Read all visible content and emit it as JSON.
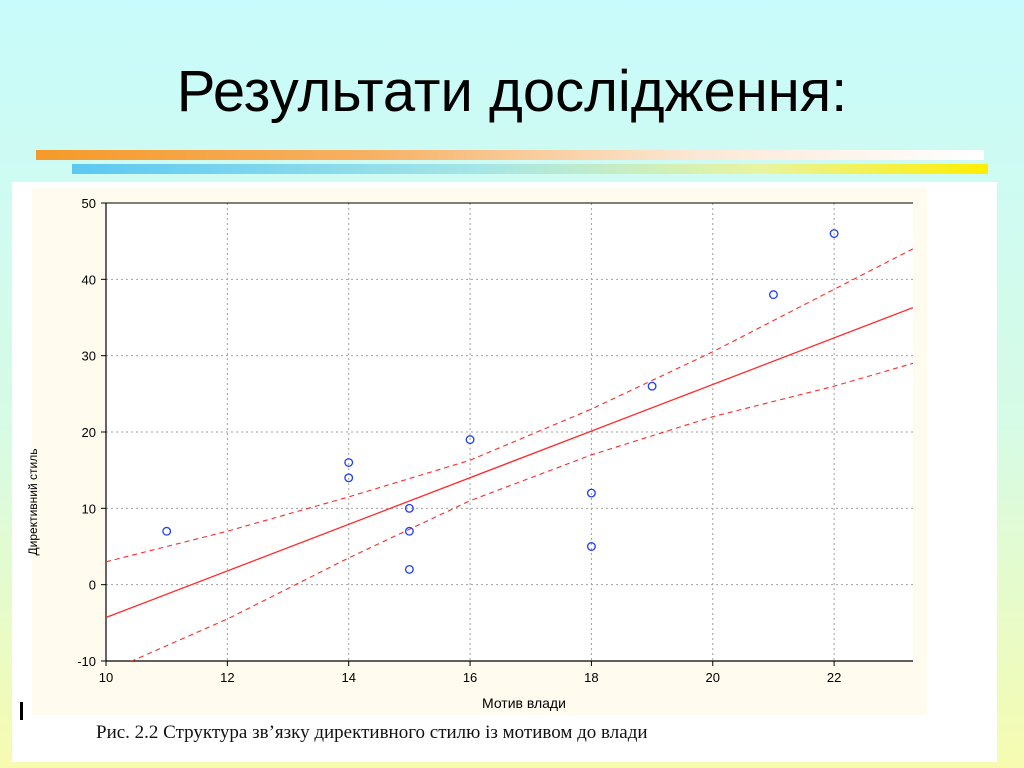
{
  "slide": {
    "title": "Результати дослідження:",
    "caption": "Рис. 2.2 Структура зв’язку директивного стилю із мотивом до влади"
  },
  "colors": {
    "points": "#1a3cff",
    "fit_line": "#ff2a2a",
    "confidence_band": "#ff2a2a",
    "grid": "#a0a0a0"
  },
  "chart_data": {
    "type": "scatter",
    "title": "",
    "xlabel": "Мотив влади",
    "ylabel": "Директивний стиль",
    "xlim": [
      10,
      23.3
    ],
    "ylim": [
      -10,
      50
    ],
    "x_ticks": [
      10,
      12,
      14,
      16,
      18,
      20,
      22
    ],
    "y_ticks": [
      -10,
      0,
      10,
      20,
      30,
      40,
      50
    ],
    "grid": true,
    "points": [
      {
        "x": 11,
        "y": 7
      },
      {
        "x": 14,
        "y": 16
      },
      {
        "x": 14,
        "y": 14
      },
      {
        "x": 15,
        "y": 10
      },
      {
        "x": 15,
        "y": 7
      },
      {
        "x": 15,
        "y": 2
      },
      {
        "x": 16,
        "y": 19
      },
      {
        "x": 18,
        "y": 12
      },
      {
        "x": 18,
        "y": 5
      },
      {
        "x": 19,
        "y": 26
      },
      {
        "x": 21,
        "y": 38
      },
      {
        "x": 22,
        "y": 46
      }
    ],
    "fit_line": {
      "x": [
        10,
        23.3
      ],
      "y": [
        -4.3,
        36.3
      ]
    },
    "confidence_upper": {
      "x": [
        10,
        12,
        14,
        16,
        18,
        20,
        22,
        23.3
      ],
      "y": [
        3,
        7,
        11.5,
        16.3,
        23,
        30.5,
        38.7,
        44
      ]
    },
    "confidence_lower": {
      "x": [
        10,
        12,
        14,
        16,
        18,
        20,
        22,
        23.3
      ],
      "y": [
        -11.5,
        -4.5,
        3.5,
        11,
        17,
        22,
        26,
        29
      ]
    }
  }
}
